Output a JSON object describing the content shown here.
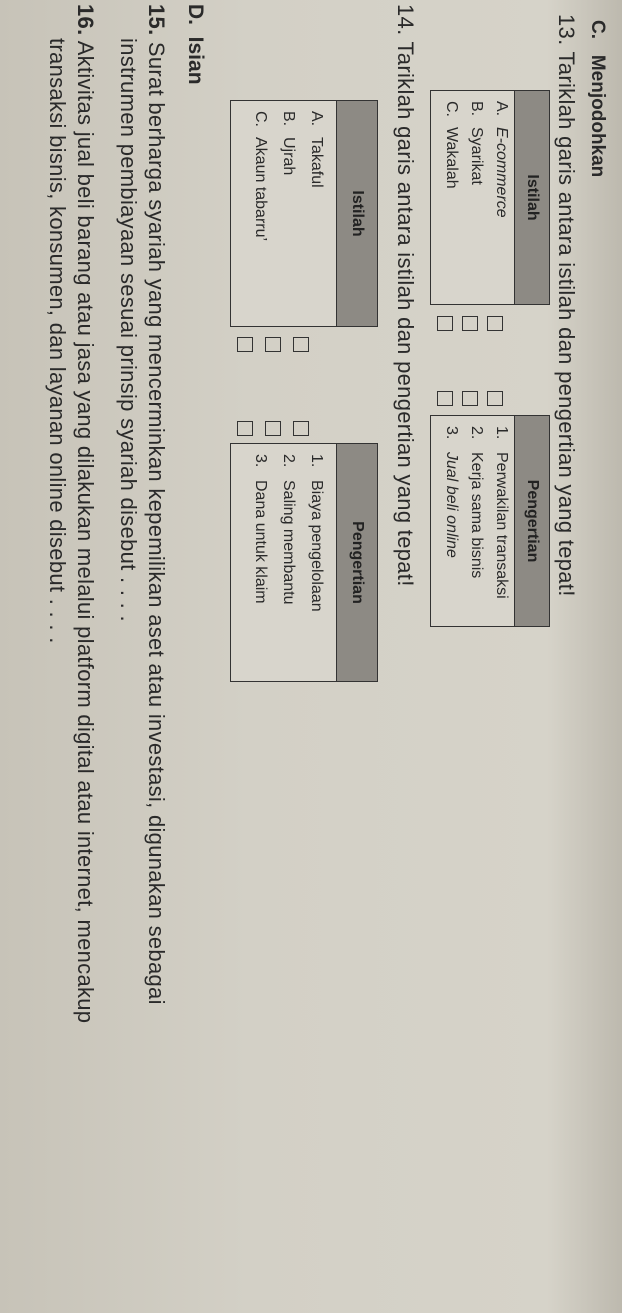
{
  "section_c": {
    "label": "C.",
    "title": "Menjodohkan"
  },
  "q13": {
    "number": "13.",
    "text": "Tariklah garis antara istilah dan pengertian yang tepat!",
    "istilah_header": "Istilah",
    "istilah": [
      {
        "key": "A.",
        "text": "E-commerce"
      },
      {
        "key": "B.",
        "text": "Syarikat"
      },
      {
        "key": "C.",
        "text": "Wakalah"
      }
    ],
    "pengertian_header": "Pengertian",
    "pengertian": [
      {
        "key": "1.",
        "text": "Perwakilan transaksi"
      },
      {
        "key": "2.",
        "text": "Kerja sama bisnis"
      },
      {
        "key": "3.",
        "text": "Jual beli online"
      }
    ]
  },
  "q14": {
    "number": "14.",
    "text": "Tariklah garis antara istilah dan pengertian yang tepat!",
    "istilah_header": "Istilah",
    "istilah": [
      {
        "key": "A.",
        "text": "Takaful"
      },
      {
        "key": "B.",
        "text": "Ujrah"
      },
      {
        "key": "C.",
        "text": "Akaun tabarru’"
      }
    ],
    "pengertian_header": "Pengertian",
    "pengertian": [
      {
        "key": "1.",
        "text": "Biaya pengelolaan"
      },
      {
        "key": "2.",
        "text": "Saling membantu"
      },
      {
        "key": "3.",
        "text": "Dana untuk klaim"
      }
    ]
  },
  "section_d": {
    "label": "D.",
    "title": "Isian"
  },
  "q15": {
    "number": "15.",
    "line1": "Surat berharga syariah yang mencerminkan kepemilikan aset atau investasi, digunakan sebagai",
    "line2": "instrumen pembiayaan sesuai prinsip syariah disebut . . . ."
  },
  "q16": {
    "number": "16.",
    "line1": "Aktivitas jual beli barang atau jasa yang dilakukan melalui platform digital atau internet, mencakup",
    "line2": "transaksi bisnis, konsumen, dan layanan online disebut . . . ."
  }
}
